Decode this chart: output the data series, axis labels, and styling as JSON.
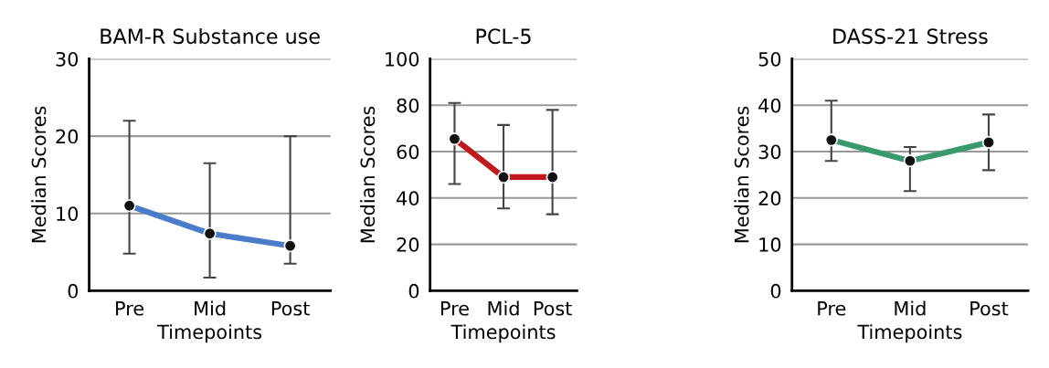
{
  "chart_data": [
    {
      "type": "line",
      "title": "BAM-R Substance use",
      "xlabel": "Timepoints",
      "ylabel": "Median Scores",
      "categories": [
        "Pre",
        "Mid",
        "Post"
      ],
      "series": [
        {
          "color": "#4a7cc9",
          "values": [
            11,
            7.4,
            5.8
          ],
          "errors": [
            [
              4.8,
              22
            ],
            [
              1.7,
              16.5
            ],
            [
              3.5,
              20
            ]
          ]
        }
      ],
      "ylim": [
        0,
        30
      ],
      "yticks": [
        0,
        10,
        20,
        30
      ],
      "grid": "y",
      "marker": "circle",
      "line_style": "solid"
    },
    {
      "type": "line",
      "title": "PCL-5",
      "xlabel": "Timepoints",
      "ylabel": "Median Scores",
      "categories": [
        "Pre",
        "Mid",
        "Post"
      ],
      "series": [
        {
          "color": "#c0191c",
          "values": [
            65.5,
            49,
            49
          ],
          "errors": [
            [
              46,
              81
            ],
            [
              35.5,
              71.5
            ],
            [
              33,
              78
            ]
          ]
        }
      ],
      "ylim": [
        0,
        100
      ],
      "yticks": [
        0,
        20,
        40,
        60,
        80,
        100
      ],
      "grid": "y",
      "marker": "circle",
      "line_style": "solid"
    },
    {
      "type": "line",
      "title": "DASS-21 Stress",
      "xlabel": "Timepoints",
      "ylabel": "Median Scores",
      "categories": [
        "Pre",
        "Mid",
        "Post"
      ],
      "series": [
        {
          "color": "#3a9a6e",
          "values": [
            32.5,
            28,
            32
          ],
          "errors": [
            [
              28,
              41
            ],
            [
              21.5,
              31
            ],
            [
              26,
              38
            ]
          ]
        }
      ],
      "ylim": [
        0,
        50
      ],
      "yticks": [
        0,
        10,
        20,
        30,
        40,
        50
      ],
      "grid": "y",
      "marker": "circle",
      "line_style": "solid"
    }
  ]
}
